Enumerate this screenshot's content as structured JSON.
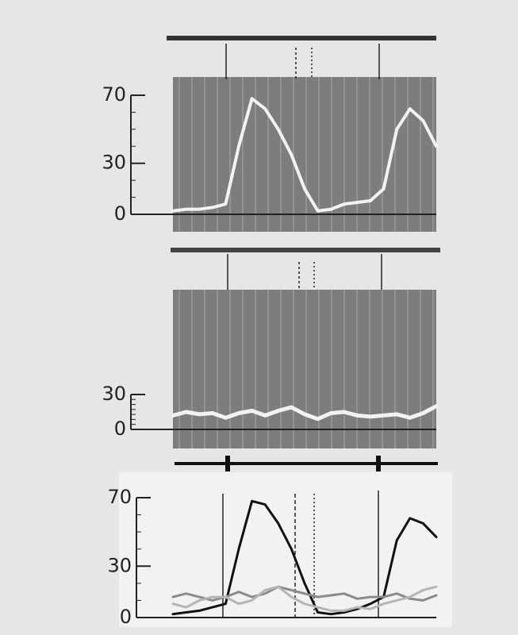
{
  "chart_data": [
    {
      "type": "line",
      "categories": [
        null,
        null,
        null,
        null,
        null,
        null,
        null,
        null,
        null,
        null,
        null,
        null,
        null,
        null,
        null,
        null,
        null,
        null,
        null,
        null,
        null
      ],
      "series": [
        {
          "color": "#f2f2f2",
          "values": [
            2,
            3,
            3,
            4,
            6,
            40,
            68,
            62,
            50,
            35,
            15,
            2,
            3,
            6,
            7,
            8,
            15,
            50,
            62,
            55,
            40
          ]
        }
      ],
      "ylim": [
        0,
        70
      ],
      "yticks": [
        0,
        30,
        70
      ]
    },
    {
      "type": "line",
      "categories": [
        null,
        null,
        null,
        null,
        null,
        null,
        null,
        null,
        null,
        null,
        null,
        null,
        null,
        null,
        null,
        null,
        null,
        null,
        null,
        null,
        null
      ],
      "series": [
        {
          "color": "#f2f2f2",
          "values": [
            12,
            15,
            13,
            14,
            10,
            14,
            16,
            12,
            16,
            19,
            13,
            9,
            14,
            15,
            12,
            11,
            12,
            13,
            10,
            14,
            20
          ]
        }
      ],
      "ylim": [
        0,
        30
      ],
      "yticks": [
        0,
        30
      ]
    },
    {
      "type": "line",
      "categories": [
        null,
        null,
        null,
        null,
        null,
        null,
        null,
        null,
        null,
        null,
        null,
        null,
        null,
        null,
        null,
        null,
        null,
        null,
        null,
        null,
        null
      ],
      "series": [
        {
          "color": "#111111",
          "values": [
            2,
            3,
            4,
            6,
            8,
            40,
            68,
            66,
            55,
            40,
            20,
            3,
            2,
            3,
            5,
            8,
            12,
            45,
            58,
            55,
            47
          ]
        },
        {
          "color": "#8a8a8a",
          "values": [
            12,
            14,
            12,
            10,
            12,
            15,
            12,
            14,
            18,
            16,
            14,
            12,
            13,
            14,
            11,
            12,
            12,
            14,
            11,
            10,
            13
          ]
        },
        {
          "color": "#b5b5b5",
          "values": [
            8,
            6,
            10,
            12,
            12,
            8,
            10,
            16,
            18,
            12,
            8,
            6,
            4,
            4,
            6,
            5,
            8,
            10,
            12,
            16,
            18
          ]
        }
      ],
      "ylim": [
        0,
        70
      ],
      "yticks": [
        0,
        30,
        70
      ]
    }
  ]
}
